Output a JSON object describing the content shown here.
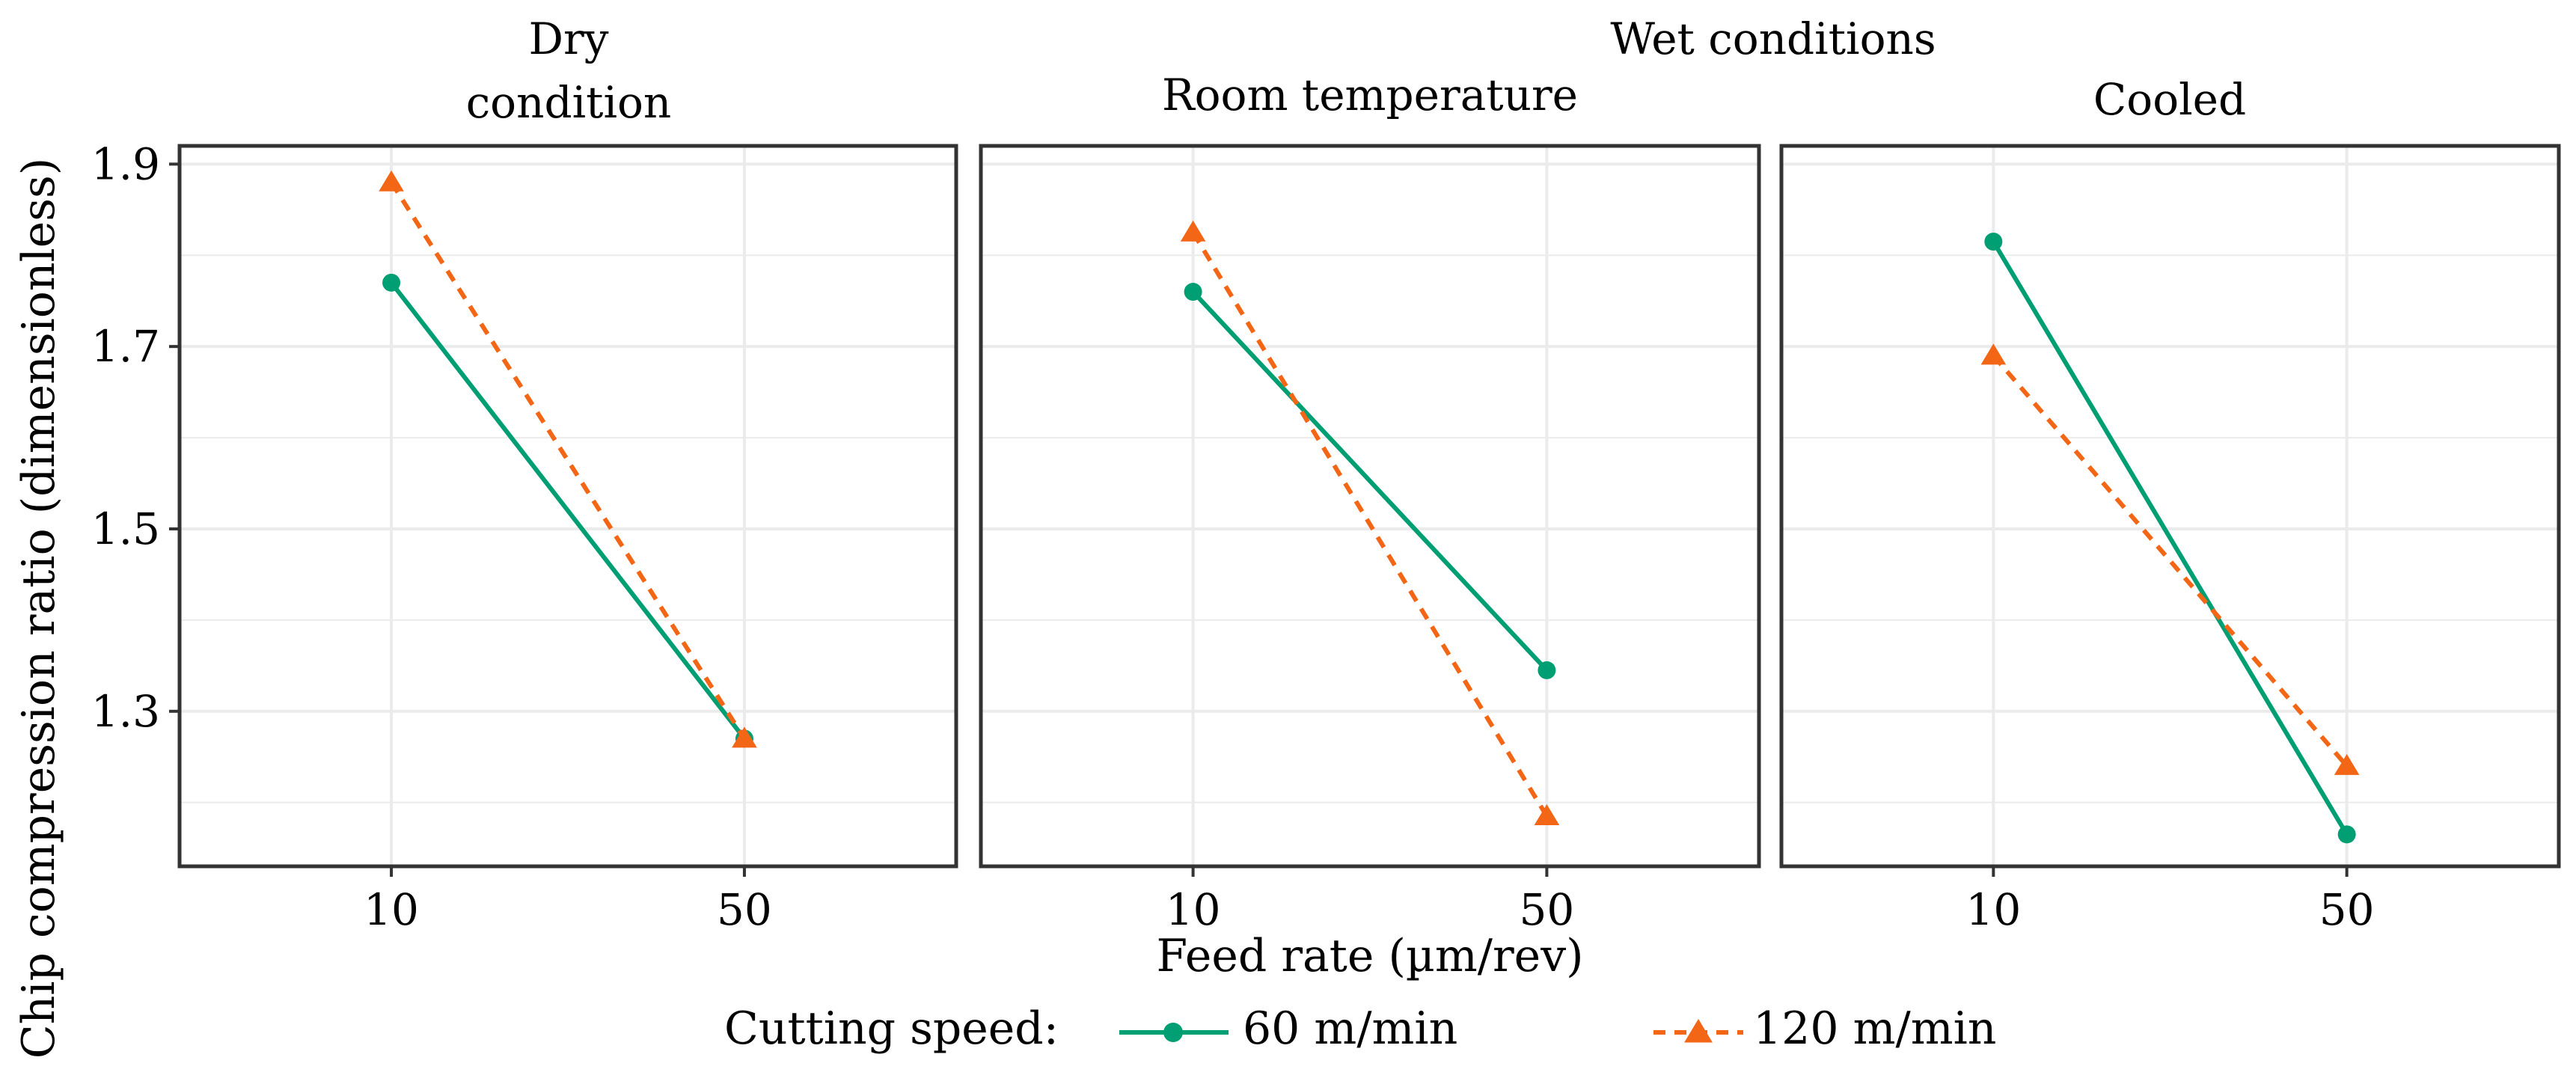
{
  "chart_data": {
    "type": "line",
    "group_title": "Wet conditions",
    "facets": [
      {
        "title_lines": [
          "Dry",
          "condition"
        ],
        "series": [
          {
            "name": "60 m/min",
            "values": [
              1.77,
              1.27
            ]
          },
          {
            "name": "120 m/min",
            "values": [
              1.88,
              1.27
            ]
          }
        ]
      },
      {
        "title_lines": [
          "Room temperature"
        ],
        "series": [
          {
            "name": "60 m/min",
            "values": [
              1.76,
              1.345
            ]
          },
          {
            "name": "120 m/min",
            "values": [
              1.825,
              1.185
            ]
          }
        ]
      },
      {
        "title_lines": [
          "Cooled"
        ],
        "series": [
          {
            "name": "60 m/min",
            "values": [
              1.815,
              1.165
            ]
          },
          {
            "name": "120 m/min",
            "values": [
              1.69,
              1.24
            ]
          }
        ]
      }
    ],
    "categories": [
      "10",
      "50"
    ],
    "xlabel": "Feed rate (µm/rev)",
    "ylabel": "Chip compression ratio (dimensionless)",
    "ylim": [
      1.13,
      1.92
    ],
    "yticks": [
      1.3,
      1.5,
      1.7,
      1.9
    ],
    "ytick_labels": [
      "1.3",
      "1.5",
      "1.7",
      "1.9"
    ],
    "grid": true,
    "legend": {
      "title": "Cutting speed:",
      "position": "bottom",
      "entries": [
        {
          "label": "60 m/min",
          "color": "#009E73",
          "marker": "circle",
          "line": "solid"
        },
        {
          "label": "120 m/min",
          "color": "#F36615",
          "marker": "triangle",
          "line": "dashed"
        }
      ]
    },
    "colors": {
      "series_60": "#009E73",
      "series_120": "#F36615",
      "grid": "#EBEBEB",
      "border": "#333333"
    }
  }
}
